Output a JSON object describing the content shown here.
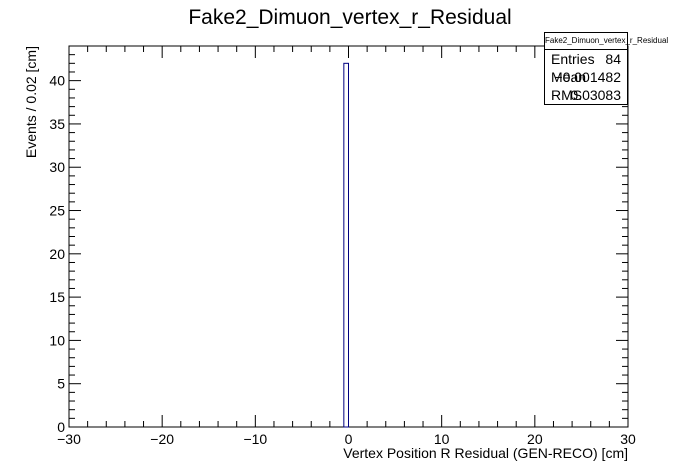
{
  "chart_data": {
    "type": "histogram",
    "title": "Fake2_Dimuon_vertex_r_Residual",
    "xlabel": "Vertex Position R Residual (GEN-RECO) [cm]",
    "ylabel": "Events / 0.02 [cm]",
    "xlim": [
      -30,
      30
    ],
    "ylim": [
      0,
      44
    ],
    "x_ticks": [
      -30,
      -20,
      -10,
      0,
      10,
      20,
      30
    ],
    "y_ticks": [
      0,
      5,
      10,
      15,
      20,
      25,
      30,
      35,
      40
    ],
    "x_tick_labels": [
      "−30",
      "−20",
      "−10",
      "0",
      "10",
      "20",
      "30"
    ],
    "y_tick_labels": [
      "0",
      "5",
      "10",
      "15",
      "20",
      "25",
      "30",
      "35",
      "40"
    ],
    "bins": [
      {
        "x_low": -0.5,
        "x_high": 0.0,
        "count": 42
      },
      {
        "x_low": 0.0,
        "x_high": 0.2,
        "count": 0
      }
    ],
    "line_color": "#000080",
    "grid": false,
    "stats": {
      "title": "Fake2_Dimuon_vertex_r_Residual",
      "entries_label": "Entries",
      "entries_value": "84",
      "mean_label": "Mean",
      "mean_value": "−0.001482",
      "rms_label": "RMS",
      "rms_value": "0.03083"
    }
  }
}
